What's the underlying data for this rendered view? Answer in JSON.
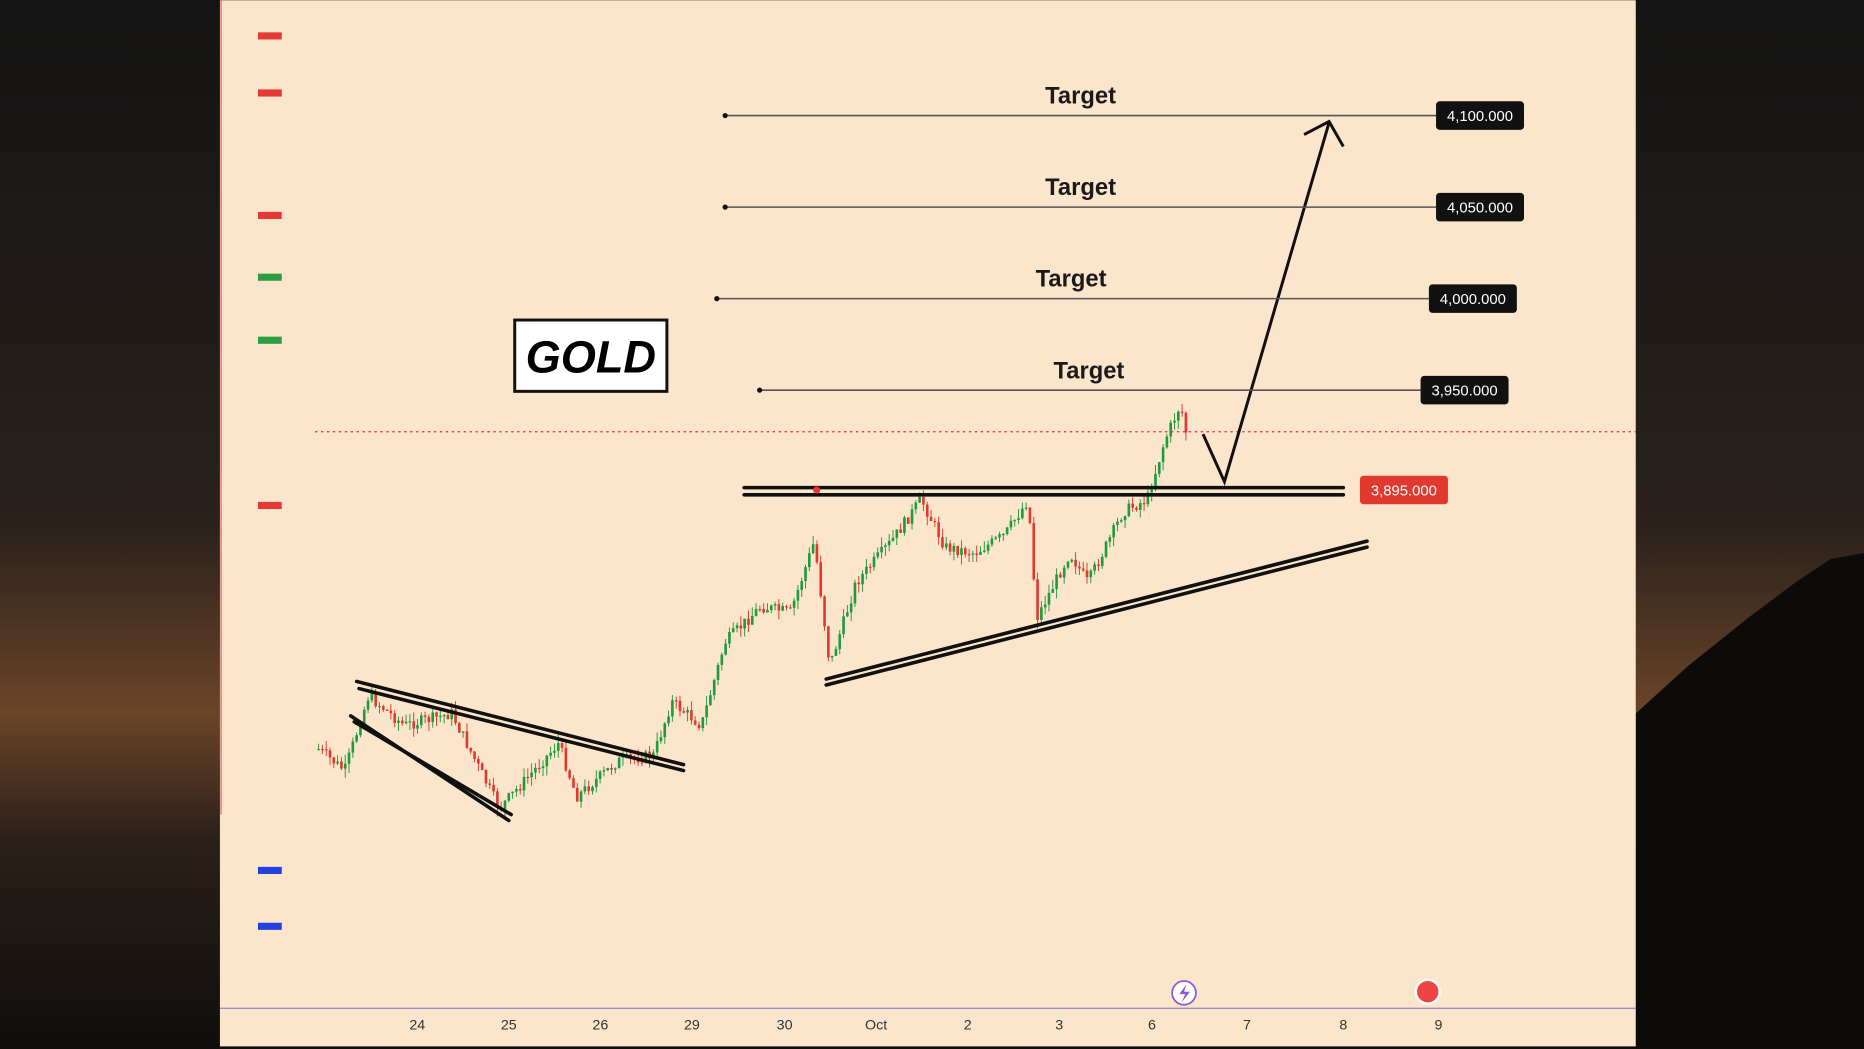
{
  "title": "GOLD",
  "targets": [
    {
      "label": "Target",
      "price": "4,100.000"
    },
    {
      "label": "Target",
      "price": "4,050.000"
    },
    {
      "label": "Target",
      "price": "4,000.000"
    },
    {
      "label": "Target",
      "price": "3,950.000"
    }
  ],
  "breakout": {
    "price": "3,895.000"
  },
  "x_axis": {
    "labels": [
      "24",
      "25",
      "26",
      "29",
      "30",
      "Oct",
      "2",
      "3",
      "6",
      "7",
      "8",
      "9"
    ]
  }
}
